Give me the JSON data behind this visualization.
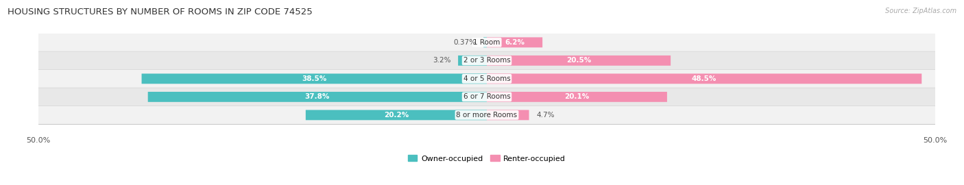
{
  "title": "HOUSING STRUCTURES BY NUMBER OF ROOMS IN ZIP CODE 74525",
  "source": "Source: ZipAtlas.com",
  "categories": [
    "1 Room",
    "2 or 3 Rooms",
    "4 or 5 Rooms",
    "6 or 7 Rooms",
    "8 or more Rooms"
  ],
  "owner_values": [
    0.37,
    3.2,
    38.5,
    37.8,
    20.2
  ],
  "renter_values": [
    6.2,
    20.5,
    48.5,
    20.1,
    4.7
  ],
  "owner_color": "#4bbfbf",
  "renter_color": "#f48fb1",
  "axis_max": 50.0,
  "owner_label": "Owner-occupied",
  "renter_label": "Renter-occupied",
  "title_fontsize": 9.5,
  "label_fontsize": 7.5,
  "tick_fontsize": 8,
  "source_fontsize": 7,
  "row_bg_even": "#f2f2f2",
  "row_bg_odd": "#e8e8e8"
}
